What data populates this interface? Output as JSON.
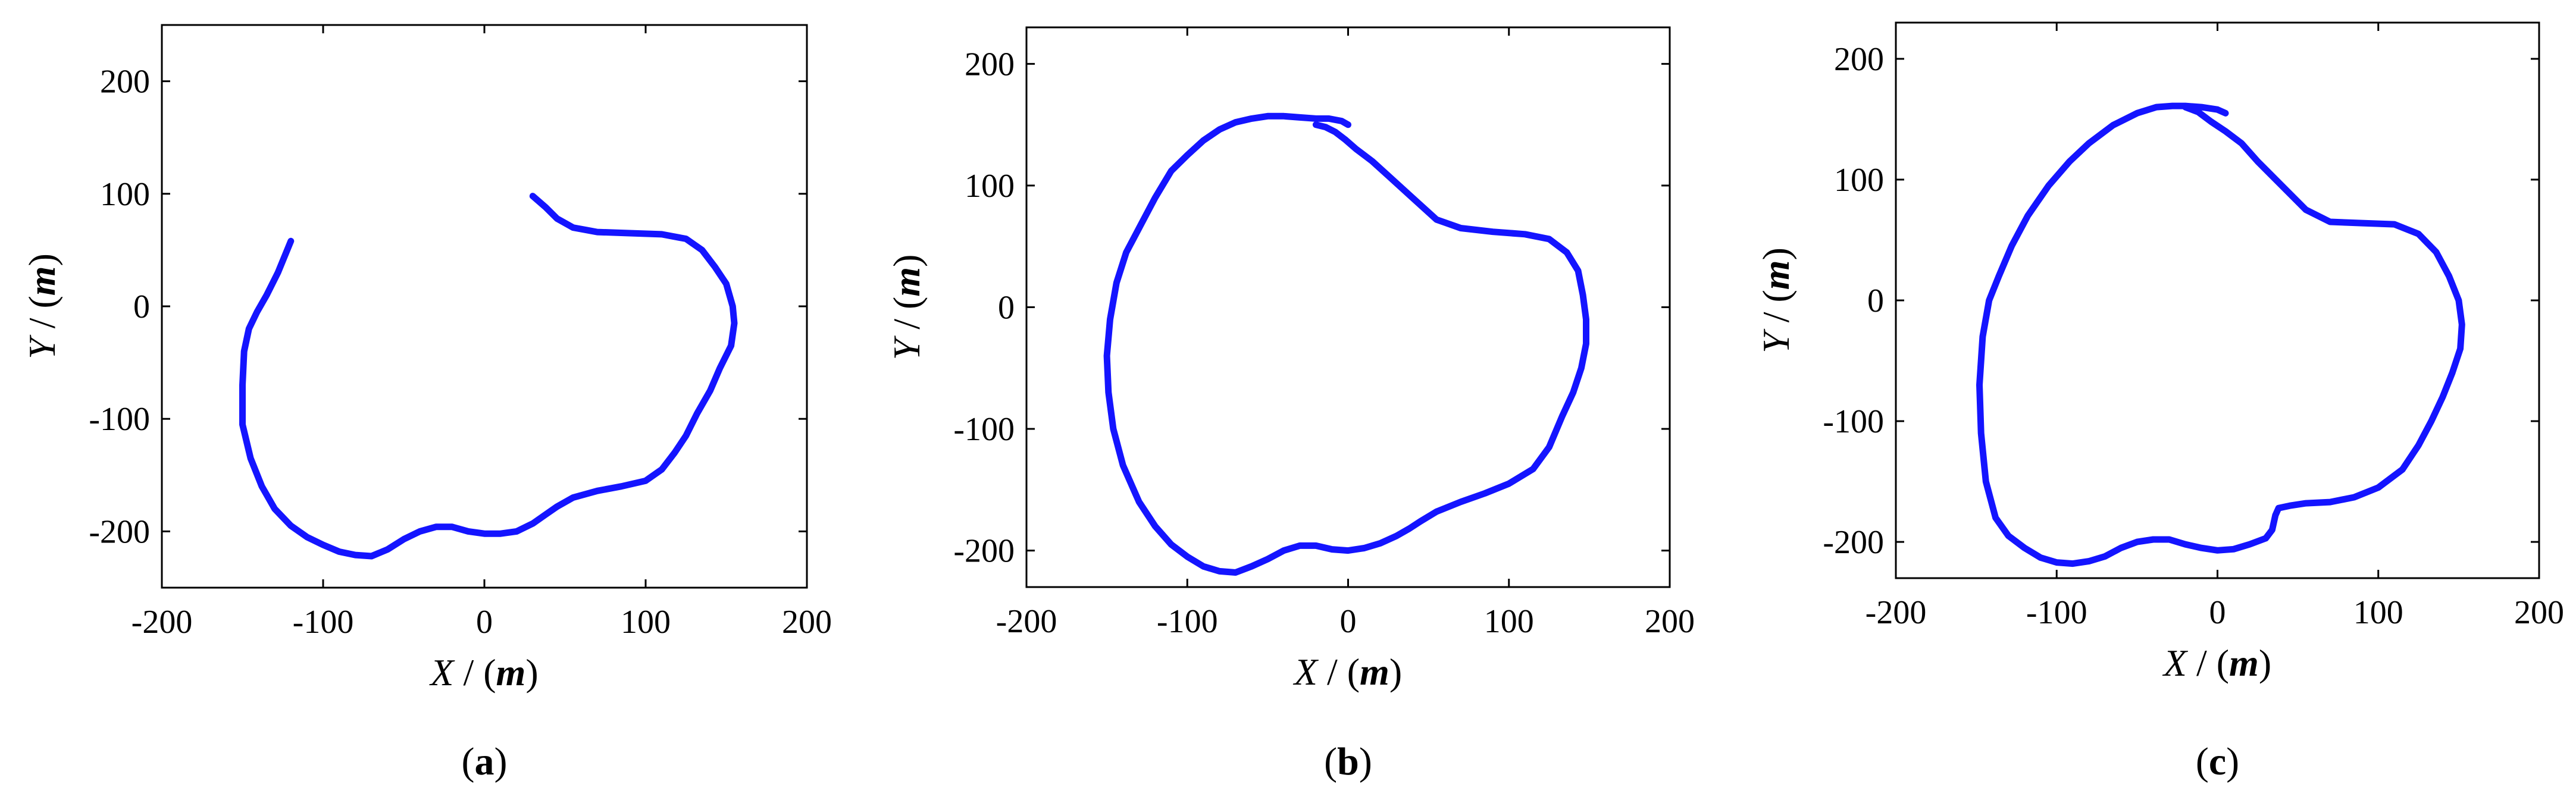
{
  "colors": {
    "line": "#1414ff",
    "axis": "#000000"
  },
  "chart_data": [
    {
      "type": "line",
      "panel_label": "a",
      "xlabel": "X / (m)",
      "ylabel": "Y / (m)",
      "xlim": [
        -200,
        200
      ],
      "ylim": [
        -250,
        250
      ],
      "xticks": [
        -200,
        -100,
        0,
        100,
        200
      ],
      "yticks": [
        -200,
        -100,
        0,
        100,
        200
      ],
      "grid": false,
      "series": [
        {
          "x": [
            30,
            38,
            45,
            55,
            70,
            90,
            110,
            125,
            135,
            143,
            150,
            154,
            155,
            153,
            146,
            140,
            132,
            125,
            118,
            110,
            100,
            85,
            70,
            55,
            45,
            38,
            30,
            20,
            10,
            0,
            -10,
            -20,
            -30,
            -40,
            -50,
            -60,
            -70,
            -80,
            -90,
            -100,
            -110,
            -120,
            -130,
            -138,
            -145,
            -150,
            -150,
            -149,
            -146,
            -141,
            -135,
            -128,
            -120
          ],
          "y": [
            98,
            88,
            78,
            70,
            66,
            65,
            64,
            60,
            50,
            35,
            20,
            0,
            -15,
            -35,
            -55,
            -75,
            -95,
            -115,
            -130,
            -145,
            -155,
            -160,
            -164,
            -170,
            -178,
            -185,
            -193,
            -200,
            -202,
            -202,
            -200,
            -196,
            -196,
            -200,
            -207,
            -216,
            -222,
            -221,
            -218,
            -212,
            -205,
            -195,
            -180,
            -160,
            -135,
            -105,
            -70,
            -40,
            -20,
            -5,
            10,
            30,
            58
          ]
        }
      ]
    },
    {
      "type": "line",
      "panel_label": "b",
      "xlabel": "X / (m)",
      "ylabel": "Y / (m)",
      "xlim": [
        -200,
        200
      ],
      "ylim": [
        -230,
        230
      ],
      "xticks": [
        -200,
        -100,
        0,
        100,
        200
      ],
      "yticks": [
        -200,
        -100,
        0,
        100,
        200
      ],
      "grid": false,
      "series": [
        {
          "x": [
            -20,
            -14,
            -8,
            -2,
            5,
            15,
            25,
            40,
            55,
            70,
            90,
            110,
            125,
            136,
            143,
            146,
            148,
            148,
            145,
            140,
            133,
            125,
            115,
            100,
            85,
            70,
            55,
            45,
            38,
            30,
            20,
            10,
            0,
            -10,
            -20,
            -30,
            -40,
            -50,
            -60,
            -70,
            -80,
            -90,
            -100,
            -110,
            -120,
            -130,
            -140,
            -146,
            -149,
            -150,
            -148,
            -144,
            -138,
            -130,
            -120,
            -110,
            -100,
            -90,
            -80,
            -70,
            -60,
            -50,
            -40,
            -30,
            -20,
            -12,
            -4,
            0
          ],
          "y": [
            150,
            148,
            144,
            138,
            130,
            120,
            108,
            90,
            72,
            65,
            62,
            60,
            56,
            45,
            30,
            10,
            -10,
            -30,
            -50,
            -70,
            -90,
            -115,
            -133,
            -145,
            -153,
            -160,
            -168,
            -176,
            -182,
            -188,
            -194,
            -198,
            -200,
            -199,
            -196,
            -196,
            -200,
            -207,
            -213,
            -218,
            -217,
            -213,
            -205,
            -195,
            -180,
            -160,
            -130,
            -100,
            -70,
            -40,
            -10,
            20,
            45,
            65,
            90,
            112,
            125,
            137,
            146,
            152,
            155,
            157,
            157,
            156,
            155,
            155,
            153,
            150
          ]
        }
      ]
    },
    {
      "type": "line",
      "panel_label": "c",
      "xlabel": "X / (m)",
      "ylabel": "Y / (m)",
      "xlim": [
        -200,
        200
      ],
      "ylim": [
        -230,
        230
      ],
      "xticks": [
        -200,
        -100,
        0,
        100,
        200
      ],
      "yticks": [
        -200,
        -100,
        0,
        100,
        200
      ],
      "grid": false,
      "series": [
        {
          "x": [
            -20,
            -12,
            -4,
            5,
            15,
            25,
            40,
            55,
            70,
            90,
            110,
            125,
            136,
            144,
            150,
            152,
            151,
            146,
            140,
            133,
            125,
            115,
            100,
            85,
            70,
            55,
            45,
            38,
            36,
            34,
            30,
            20,
            10,
            0,
            -10,
            -20,
            -30,
            -40,
            -50,
            -60,
            -70,
            -80,
            -90,
            -100,
            -110,
            -120,
            -130,
            -138,
            -144,
            -147,
            -148,
            -146,
            -142,
            -136,
            -128,
            -118,
            -105,
            -92,
            -80,
            -65,
            -50,
            -38,
            -28,
            -20,
            -10,
            0,
            5
          ],
          "y": [
            160,
            156,
            148,
            140,
            130,
            115,
            95,
            75,
            65,
            64,
            63,
            55,
            40,
            20,
            0,
            -20,
            -40,
            -60,
            -80,
            -100,
            -120,
            -140,
            -155,
            -163,
            -167,
            -168,
            -170,
            -172,
            -178,
            -190,
            -197,
            -202,
            -206,
            -207,
            -205,
            -202,
            -198,
            -198,
            -200,
            -205,
            -212,
            -216,
            -218,
            -217,
            -213,
            -205,
            -195,
            -180,
            -150,
            -110,
            -70,
            -30,
            0,
            20,
            45,
            70,
            95,
            115,
            130,
            145,
            155,
            160,
            161,
            161,
            160,
            158,
            155
          ]
        }
      ]
    }
  ]
}
